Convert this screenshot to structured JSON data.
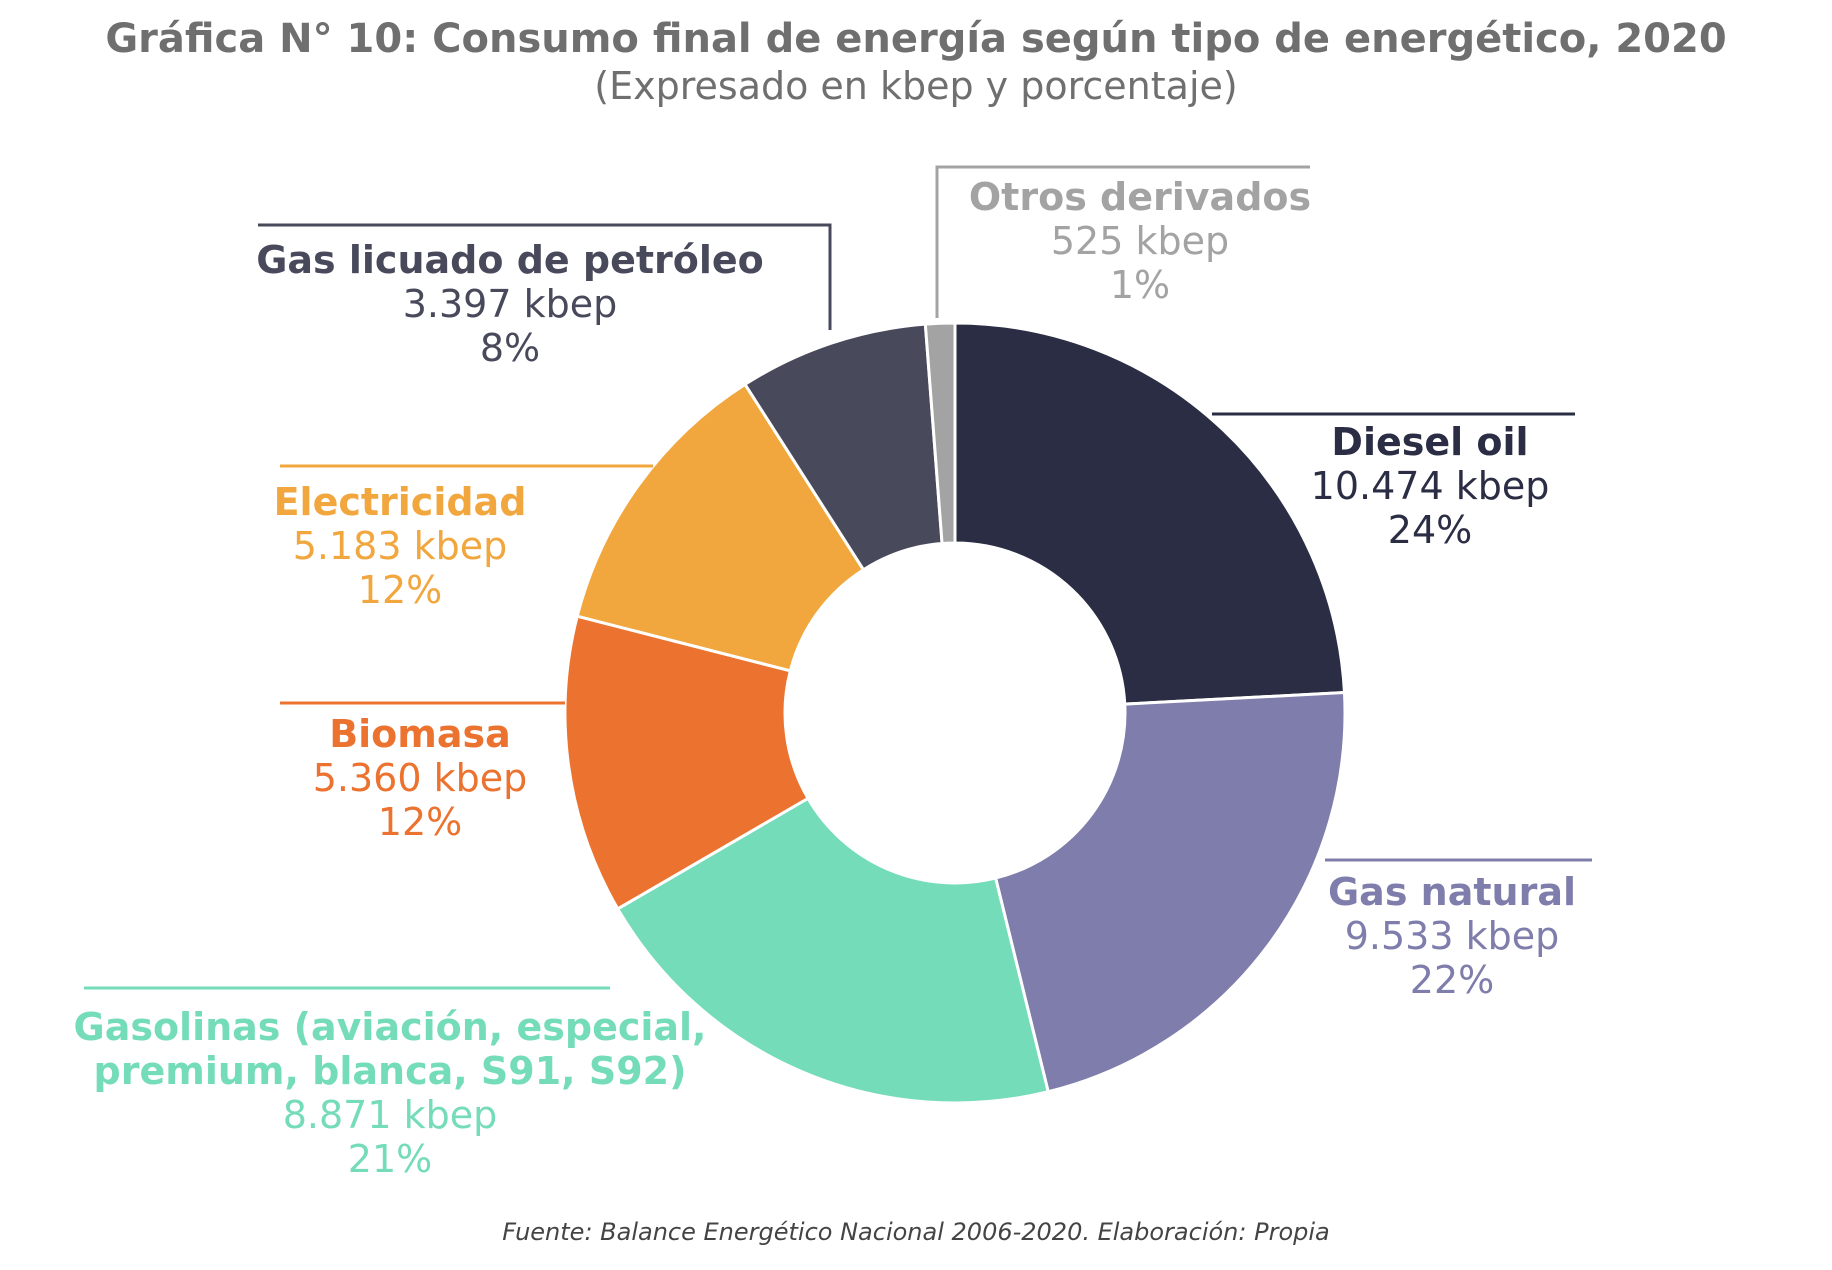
{
  "header": {
    "title": "Gráfica N° 10: Consumo final de energía según tipo de energético, 2020",
    "subtitle": "(Expresado en kbep y porcentaje)"
  },
  "chart_data": {
    "type": "pie",
    "variant": "donut",
    "title": "Gráfica N° 10: Consumo final de energía según tipo de energético, 2020",
    "subtitle": "(Expresado en kbep y porcentaje)",
    "unit": "kbep",
    "slices": [
      {
        "key": "diesel",
        "label": "Diesel oil",
        "value": 10474,
        "value_label": "10.474 kbep",
        "percent_label": "24%",
        "color": "#2a2d43"
      },
      {
        "key": "gasnat",
        "label": "Gas natural",
        "value": 9533,
        "value_label": "9.533 kbep",
        "percent_label": "22%",
        "color": "#7f7dab"
      },
      {
        "key": "gasolinas",
        "label_line1": "Gasolinas (aviación, especial,",
        "label_line2": "premium, blanca, S91, S92)",
        "value": 8871,
        "value_label": "8.871 kbep",
        "percent_label": "21%",
        "color": "#74dcb9"
      },
      {
        "key": "biomasa",
        "label": "Biomasa",
        "value": 5360,
        "value_label": "5.360 kbep",
        "percent_label": "12%",
        "color": "#ec7230"
      },
      {
        "key": "electricidad",
        "label": "Electricidad",
        "value": 5183,
        "value_label": "5.183 kbep",
        "percent_label": "12%",
        "color": "#f1a73e"
      },
      {
        "key": "glp",
        "label": "Gas licuado de petróleo",
        "value": 3397,
        "value_label": "3.397 kbep",
        "percent_label": "8%",
        "color": "#484a5c"
      },
      {
        "key": "otros",
        "label": "Otros derivados",
        "value": 525,
        "value_label": "525 kbep",
        "percent_label": "1%",
        "color": "#a3a3a3"
      }
    ]
  },
  "footer": {
    "source": "Fuente: Balance Energético Nacional 2006-2020. Elaboración: Propia"
  }
}
